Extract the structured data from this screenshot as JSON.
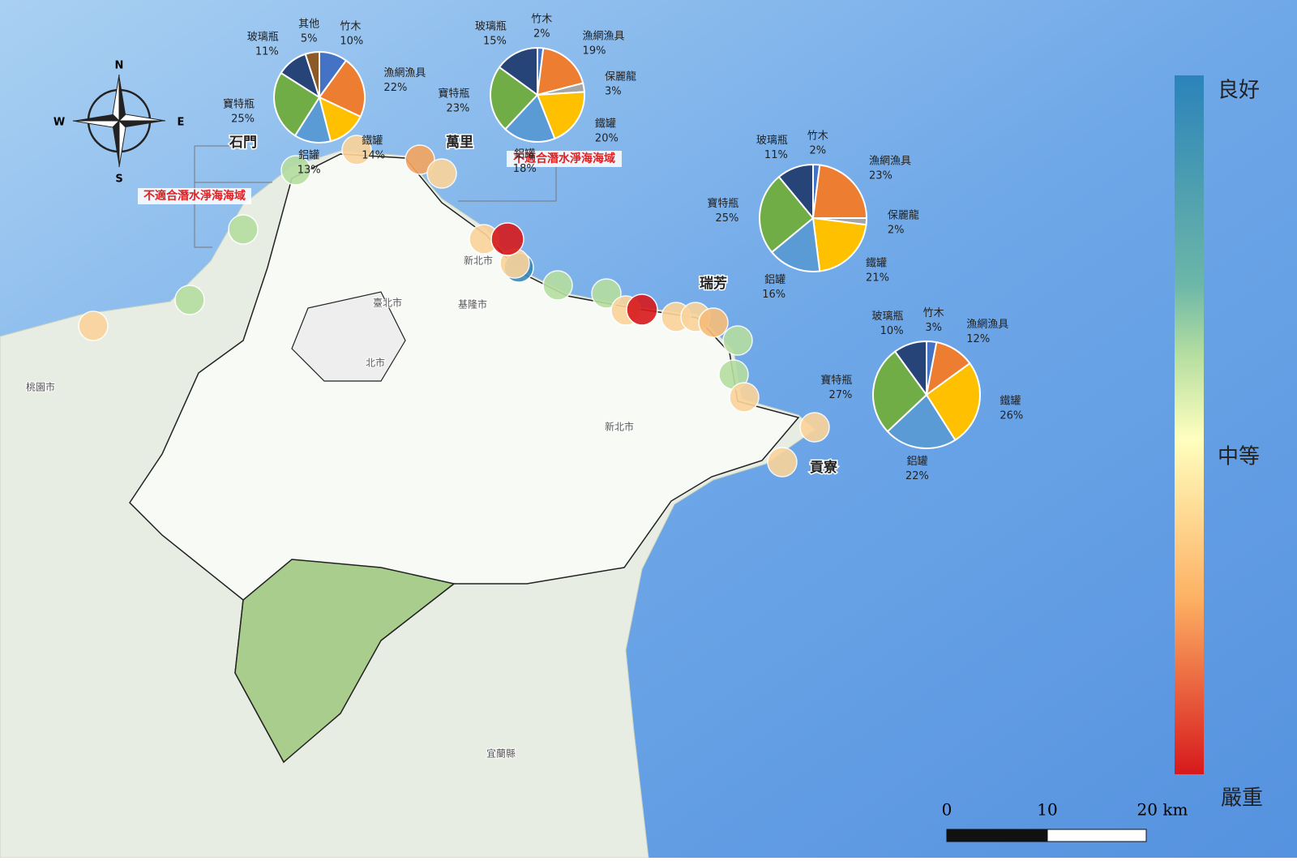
{
  "compass": {
    "n": "N",
    "s": "S",
    "e": "E",
    "w": "W"
  },
  "places": [
    "石門",
    "萬里",
    "瑞芳",
    "貢寮",
    "新北市",
    "臺北市",
    "基隆市",
    "桃園市",
    "宜蘭縣",
    "北市",
    "新北市"
  ],
  "warnings": [
    "不適合潛水淨海海域",
    "不適合潛水淨海海域"
  ],
  "pies": [
    {
      "categories": [
        "竹木",
        "漁網漁具",
        "鐵罐",
        "鋁罐",
        "寶特瓶",
        "玻璃瓶",
        "其他"
      ],
      "values": [
        10,
        22,
        14,
        13,
        25,
        11,
        5
      ],
      "value_labels": [
        "10%",
        "22%",
        "14%",
        "13%",
        "25%",
        "11%",
        "5%"
      ],
      "colors": [
        "#4472c4",
        "#ed7d31",
        "#ffc000",
        "#5b9bd5",
        "#70ad47",
        "#264478",
        "#8c5a28"
      ]
    },
    {
      "categories": [
        "竹木",
        "漁網漁具",
        "保麗龍",
        "鐵罐",
        "鋁罐",
        "寶特瓶",
        "玻璃瓶"
      ],
      "values": [
        2,
        19,
        3,
        20,
        18,
        23,
        15
      ],
      "value_labels": [
        "2%",
        "19%",
        "3%",
        "20%",
        "18%",
        "23%",
        "15%"
      ],
      "colors": [
        "#4472c4",
        "#ed7d31",
        "#a5a5a5",
        "#ffc000",
        "#5b9bd5",
        "#70ad47",
        "#264478"
      ]
    },
    {
      "categories": [
        "竹木",
        "漁網漁具",
        "保麗龍",
        "鐵罐",
        "鋁罐",
        "寶特瓶",
        "玻璃瓶"
      ],
      "values": [
        2,
        23,
        2,
        21,
        16,
        25,
        11
      ],
      "value_labels": [
        "2%",
        "23%",
        "2%",
        "21%",
        "16%",
        "25%",
        "11%"
      ],
      "colors": [
        "#4472c4",
        "#ed7d31",
        "#a5a5a5",
        "#ffc000",
        "#5b9bd5",
        "#70ad47",
        "#264478"
      ]
    },
    {
      "categories": [
        "竹木",
        "漁網漁具",
        "鐵罐",
        "鋁罐",
        "寶特瓶",
        "玻璃瓶"
      ],
      "values": [
        3,
        12,
        26,
        22,
        27,
        10
      ],
      "value_labels": [
        "3%",
        "12%",
        "26%",
        "22%",
        "27%",
        "10%"
      ],
      "colors": [
        "#4472c4",
        "#ed7d31",
        "#ffc000",
        "#5b9bd5",
        "#70ad47",
        "#264478"
      ]
    }
  ],
  "legend": {
    "top": "良好",
    "middle": "中等",
    "bottom": "嚴重"
  },
  "scale_bar": {
    "labels": [
      "0",
      "10",
      "20 km"
    ]
  }
}
